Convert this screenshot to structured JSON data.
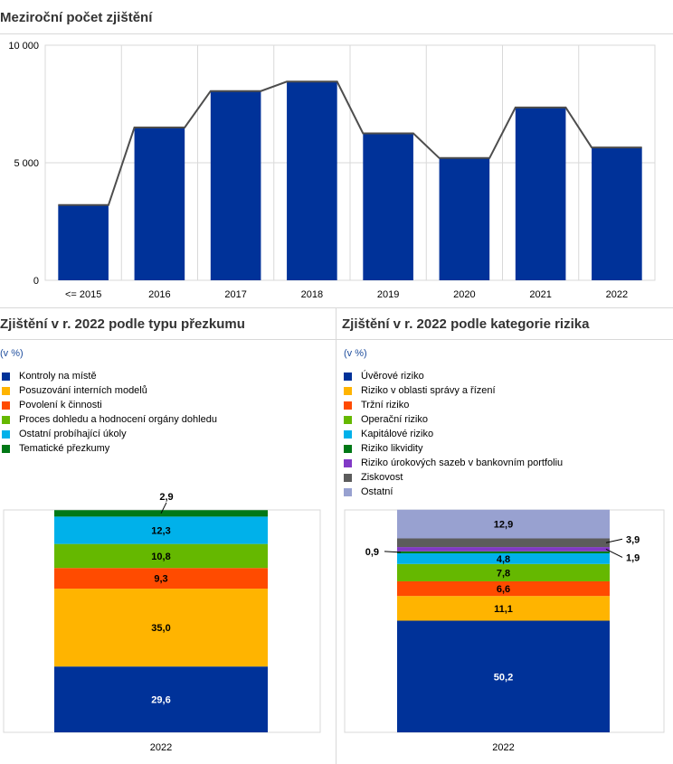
{
  "top": {
    "title": "Meziroční počet zjištění",
    "chart_data": {
      "type": "bar",
      "categories": [
        "<= 2015",
        "2016",
        "2017",
        "2018",
        "2019",
        "2020",
        "2021",
        "2022"
      ],
      "values": [
        3200,
        6500,
        8050,
        8450,
        6250,
        5200,
        7350,
        5650
      ],
      "ylim": [
        0,
        10000
      ],
      "yticks": [
        "0",
        "5 000",
        "10 000"
      ],
      "ytick_values": [
        0,
        5000,
        10000
      ],
      "grid": true,
      "bar_color": "#003299",
      "line_color": "#4d4d4d"
    }
  },
  "left": {
    "title": "Zjištění v r. 2022 podle typu přezkumu",
    "unit": "(v %)",
    "legend": [
      {
        "label": "Kontroly na místě",
        "color": "#003299"
      },
      {
        "label": "Posuzování interních modelů",
        "color": "#FFB400"
      },
      {
        "label": "Povolení k činnosti",
        "color": "#FF4B00"
      },
      {
        "label": "Proces dohledu a hodnocení orgány dohledu",
        "color": "#65B800"
      },
      {
        "label": "Ostatní probíhající úkoly",
        "color": "#00B1EA"
      },
      {
        "label": "Tematické přezkumy",
        "color": "#007816"
      }
    ],
    "chart_data": {
      "type": "bar",
      "stacked": true,
      "categories": [
        "2022"
      ],
      "ylim": [
        0,
        100
      ],
      "series": [
        {
          "name": "Kontroly na místě",
          "values": [
            29.6
          ],
          "label": "29,6",
          "color": "#003299",
          "text_color": "#ffffff"
        },
        {
          "name": "Posuzování interních modelů",
          "values": [
            35.0
          ],
          "label": "35,0",
          "color": "#FFB400",
          "text_color": "#000000"
        },
        {
          "name": "Povolení k činnosti",
          "values": [
            9.3
          ],
          "label": "9,3",
          "color": "#FF4B00",
          "text_color": "#000000"
        },
        {
          "name": "Proces dohledu a hodnocení orgány dohledu",
          "values": [
            10.8
          ],
          "label": "10,8",
          "color": "#65B800",
          "text_color": "#000000"
        },
        {
          "name": "Ostatní probíhající úkoly",
          "values": [
            12.3
          ],
          "label": "12,3",
          "color": "#00B1EA",
          "text_color": "#000000"
        },
        {
          "name": "Tematické přezkumy",
          "values": [
            2.9
          ],
          "label": "2,9",
          "color": "#007816",
          "text_color": "#000000",
          "callout": "top"
        }
      ]
    }
  },
  "right": {
    "title": "Zjištění v r. 2022 podle kategorie rizika",
    "unit": "(v %)",
    "legend": [
      {
        "label": "Úvěrové riziko",
        "color": "#003299"
      },
      {
        "label": "Riziko v oblasti správy a řízení",
        "color": "#FFB400"
      },
      {
        "label": "Tržní riziko",
        "color": "#FF4B00"
      },
      {
        "label": "Operační riziko",
        "color": "#65B800"
      },
      {
        "label": "Kapitálové riziko",
        "color": "#00B1EA"
      },
      {
        "label": "Riziko likvidity",
        "color": "#007816"
      },
      {
        "label": "Riziko úrokových sazeb v bankovním portfoliu",
        "color": "#8139C6"
      },
      {
        "label": "Ziskovost",
        "color": "#5C5C5C"
      },
      {
        "label": "Ostatní",
        "color": "#98A1D0"
      }
    ],
    "chart_data": {
      "type": "bar",
      "stacked": true,
      "categories": [
        "2022"
      ],
      "ylim": [
        0,
        100
      ],
      "series": [
        {
          "name": "Úvěrové riziko",
          "values": [
            50.2
          ],
          "label": "50,2",
          "color": "#003299",
          "text_color": "#ffffff"
        },
        {
          "name": "Riziko v oblasti správy a řízení",
          "values": [
            11.1
          ],
          "label": "11,1",
          "color": "#FFB400",
          "text_color": "#000000"
        },
        {
          "name": "Tržní riziko",
          "values": [
            6.6
          ],
          "label": "6,6",
          "color": "#FF4B00",
          "text_color": "#000000"
        },
        {
          "name": "Operační riziko",
          "values": [
            7.8
          ],
          "label": "7,8",
          "color": "#65B800",
          "text_color": "#000000"
        },
        {
          "name": "Kapitálové riziko",
          "values": [
            4.8
          ],
          "label": "4,8",
          "color": "#00B1EA",
          "text_color": "#000000"
        },
        {
          "name": "Riziko likvidity",
          "values": [
            0.9
          ],
          "label": "0,9",
          "color": "#007816",
          "text_color": "#000000",
          "callout": "left"
        },
        {
          "name": "Riziko úrokových sazeb v bankovním portfoliu",
          "values": [
            1.9
          ],
          "label": "1,9",
          "color": "#8139C6",
          "text_color": "#000000",
          "callout": "right-low"
        },
        {
          "name": "Ziskovost",
          "values": [
            3.9
          ],
          "label": "3,9",
          "color": "#5C5C5C",
          "text_color": "#000000",
          "callout": "right-high"
        },
        {
          "name": "Ostatní",
          "values": [
            12.9
          ],
          "label": "12,9",
          "color": "#98A1D0",
          "text_color": "#000000"
        }
      ]
    }
  }
}
